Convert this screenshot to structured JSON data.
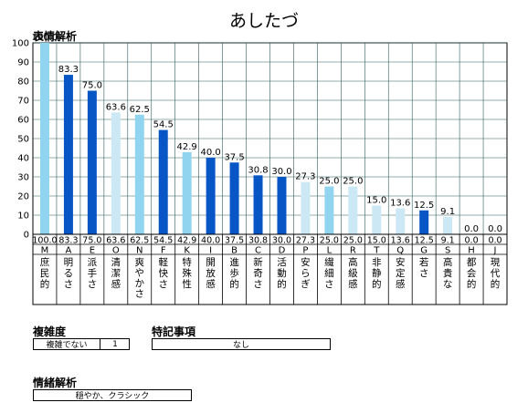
{
  "page": {
    "title": "あしたづ"
  },
  "colors": {
    "light": "#90d4f0",
    "dark": "#0856c6",
    "pale": "#cce8f4",
    "grid": "#2e5c5c"
  },
  "chart_data": {
    "type": "bar",
    "section_label": "表情解析",
    "ylim": [
      0,
      100
    ],
    "yticks": [
      0,
      10,
      20,
      30,
      40,
      50,
      60,
      70,
      80,
      90,
      100
    ],
    "grid": true,
    "bars": [
      {
        "code": "M",
        "value": 100.0,
        "value_label": "100.0",
        "label": "庶民的",
        "tone": "light"
      },
      {
        "code": "A",
        "value": 83.3,
        "value_label": "83.3",
        "label": "明るさ",
        "tone": "dark"
      },
      {
        "code": "E",
        "value": 75.0,
        "value_label": "75.0",
        "label": "派手さ",
        "tone": "dark"
      },
      {
        "code": "O",
        "value": 63.6,
        "value_label": "63.6",
        "label": "清潔感",
        "tone": "pale"
      },
      {
        "code": "N",
        "value": 62.5,
        "value_label": "62.5",
        "label": "爽やかさ",
        "tone": "light"
      },
      {
        "code": "F",
        "value": 54.5,
        "value_label": "54.5",
        "label": "軽快さ",
        "tone": "dark"
      },
      {
        "code": "K",
        "value": 42.9,
        "value_label": "42.9",
        "label": "特殊性",
        "tone": "light"
      },
      {
        "code": "I",
        "value": 40.0,
        "value_label": "40.0",
        "label": "開放感",
        "tone": "dark"
      },
      {
        "code": "B",
        "value": 37.5,
        "value_label": "37.5",
        "label": "進歩的",
        "tone": "dark"
      },
      {
        "code": "C",
        "value": 30.8,
        "value_label": "30.8",
        "label": "新奇さ",
        "tone": "dark"
      },
      {
        "code": "D",
        "value": 30.0,
        "value_label": "30.0",
        "label": "活動的",
        "tone": "dark"
      },
      {
        "code": "P",
        "value": 27.3,
        "value_label": "27.3",
        "label": "安らぎ",
        "tone": "pale"
      },
      {
        "code": "L",
        "value": 25.0,
        "value_label": "25.0",
        "label": "繊細さ",
        "tone": "light"
      },
      {
        "code": "R",
        "value": 25.0,
        "value_label": "25.0",
        "label": "高級感",
        "tone": "pale"
      },
      {
        "code": "T",
        "value": 15.0,
        "value_label": "15.0",
        "label": "非静的",
        "tone": "pale"
      },
      {
        "code": "Q",
        "value": 13.6,
        "value_label": "13.6",
        "label": "安定感",
        "tone": "pale"
      },
      {
        "code": "G",
        "value": 12.5,
        "value_label": "12.5",
        "label": "若さ",
        "tone": "dark"
      },
      {
        "code": "S",
        "value": 9.1,
        "value_label": "9.1",
        "label": "高貴な",
        "tone": "pale"
      },
      {
        "code": "H",
        "value": 0.0,
        "value_label": "0.0",
        "label": "都会的",
        "tone": "light"
      },
      {
        "code": "J",
        "value": 0.0,
        "value_label": "0.0",
        "label": "現代的",
        "tone": "light"
      }
    ]
  },
  "complexity": {
    "label": "複雑度",
    "text": "複雑でない",
    "value": "1"
  },
  "notes": {
    "label": "特記事項",
    "text": "なし"
  },
  "emotion": {
    "label": "情緒解析",
    "text": "穏やか、クラシック"
  }
}
